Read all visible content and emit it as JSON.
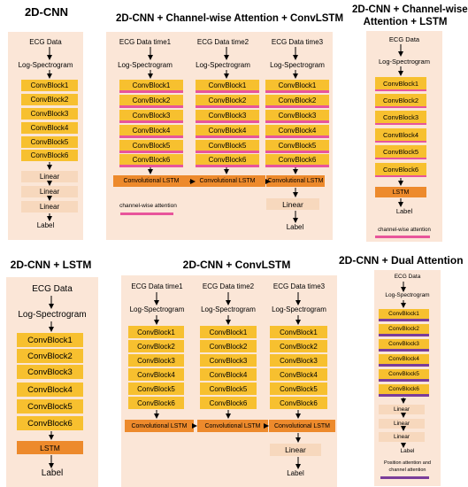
{
  "colors": {
    "panel": "#fbe6d7",
    "conv_block": "#f7c02f",
    "lstm": "#ed8a2c",
    "linear": "#f7d8bd",
    "channel_attention": "#e8559b",
    "dual_attention": "#7a3d9a"
  },
  "panels": {
    "cnn2d": {
      "title": "2D-CNN",
      "input": "ECG Data",
      "spectrogram": "Log-Spectrogram",
      "blocks": [
        "ConvBlock1",
        "ConvBlock2",
        "ConvBlock3",
        "ConvBlock4",
        "ConvBlock5",
        "ConvBlock6"
      ],
      "linears": [
        "Linear",
        "Linear",
        "Linear"
      ],
      "output": "Label"
    },
    "cwa_convlstm": {
      "title": "2D-CNN + Channel-wise Attention + ConvLSTM",
      "inputs": [
        "ECG Data time1",
        "ECG Data time2",
        "ECG Data time3"
      ],
      "spectrogram": "Log-Spectrogram",
      "blocks": [
        "ConvBlock1",
        "ConvBlock2",
        "ConvBlock3",
        "ConvBlock4",
        "ConvBlock5",
        "ConvBlock6"
      ],
      "convlstm": "Convolutional LSTM",
      "linear": "Linear",
      "output": "Label",
      "legend": "channel-wise attention"
    },
    "cwa_lstm": {
      "title_line1": "2D-CNN + Channel-wise",
      "title_line2": "Attention + LSTM",
      "input": "ECG Data",
      "spectrogram": "Log-Spectrogram",
      "blocks": [
        "ConvBlock1",
        "ConvBlock2",
        "ConvBlock3",
        "ConvBlock4",
        "ConvBlock5",
        "ConvBlock6"
      ],
      "lstm": "LSTM",
      "output": "Label",
      "legend": "channel-wise attention"
    },
    "cnn_lstm": {
      "title": "2D-CNN + LSTM",
      "input": "ECG Data",
      "spectrogram": "Log-Spectrogram",
      "blocks": [
        "ConvBlock1",
        "ConvBlock2",
        "ConvBlock3",
        "ConvBlock4",
        "ConvBlock5",
        "ConvBlock6"
      ],
      "lstm": "LSTM",
      "output": "Label"
    },
    "cnn_convlstm": {
      "title": "2D-CNN + ConvLSTM",
      "inputs": [
        "ECG Data time1",
        "ECG Data time2",
        "ECG Data time3"
      ],
      "spectrogram": "Log-Spectrogram",
      "blocks": [
        "ConvBlock1",
        "ConvBlock2",
        "ConvBlock3",
        "ConvBlock4",
        "ConvBlock5",
        "ConvBlock6"
      ],
      "convlstm": "Convolutional LSTM",
      "linear": "Linear",
      "output": "Label"
    },
    "dual_attention": {
      "title": "2D-CNN + Dual Attention",
      "input": "ECG Data",
      "spectrogram": "Log-Spectrogram",
      "blocks": [
        "ConvBlock1",
        "ConvBlock2",
        "ConvBlock3",
        "ConvBlock4",
        "ConvBlock5",
        "ConvBlock6"
      ],
      "linears": [
        "Linear",
        "Linear",
        "Linear"
      ],
      "output": "Label",
      "legend_line1": "Position attention and",
      "legend_line2": "channel attention"
    }
  }
}
